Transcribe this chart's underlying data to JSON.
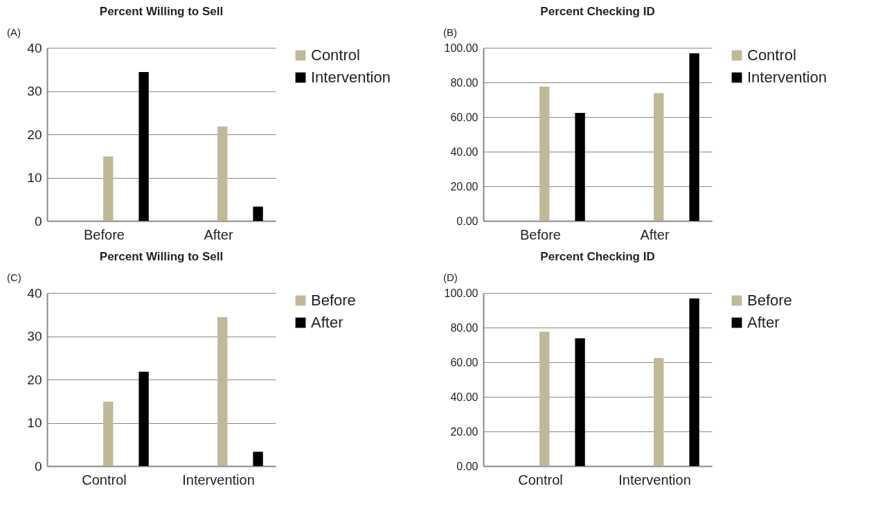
{
  "chart_data": [
    {
      "type": "bar",
      "title": "Percent Willing to Sell",
      "annotations": [
        "(A)"
      ],
      "categories": [
        "Before",
        "After"
      ],
      "series": [
        {
          "name": "Control",
          "color": "#bfb997",
          "values": [
            14.9,
            21.8
          ]
        },
        {
          "name": "Intervention",
          "color": "#000000",
          "values": [
            34.4,
            3.3
          ]
        }
      ],
      "ylim": [
        0,
        40
      ],
      "yticks": [
        0,
        10,
        20,
        30,
        40
      ],
      "grid": "y",
      "legend": "right"
    },
    {
      "type": "bar",
      "title": "Percent Checking ID",
      "annotations": [
        "(B)"
      ],
      "categories": [
        "Before",
        "After"
      ],
      "series": [
        {
          "name": "Control",
          "color": "#bfb997",
          "values": [
            77.6,
            73.8
          ]
        },
        {
          "name": "Intervention",
          "color": "#000000",
          "values": [
            62.4,
            96.8
          ]
        }
      ],
      "ylim": [
        0,
        100
      ],
      "yticks": [
        {
          "value": 0,
          "label": "0.00"
        },
        {
          "value": 20,
          "label": "20.00"
        },
        {
          "value": 40,
          "label": "40.00"
        },
        {
          "value": 60,
          "label": "60.00"
        },
        {
          "value": 80,
          "label": "80.00"
        },
        {
          "value": 100,
          "label": "100.00"
        }
      ],
      "grid": "y",
      "legend": "right"
    },
    {
      "type": "bar",
      "title": "Percent Willing to Sell",
      "annotations": [
        "(C)"
      ],
      "categories": [
        "Control",
        "Intervention"
      ],
      "series": [
        {
          "name": "Before",
          "color": "#bfb997",
          "values": [
            14.9,
            34.4
          ]
        },
        {
          "name": "After",
          "color": "#000000",
          "values": [
            21.8,
            3.3
          ]
        }
      ],
      "ylim": [
        0,
        40
      ],
      "yticks": [
        0,
        10,
        20,
        30,
        40
      ],
      "grid": "y",
      "legend": "right"
    },
    {
      "type": "bar",
      "title": "Percent Checking ID",
      "annotations": [
        "(D)"
      ],
      "categories": [
        "Control",
        "Intervention"
      ],
      "series": [
        {
          "name": "Before",
          "color": "#bfb997",
          "values": [
            77.6,
            62.4
          ]
        },
        {
          "name": "After",
          "color": "#000000",
          "values": [
            73.8,
            96.8
          ]
        }
      ],
      "ylim": [
        0,
        100
      ],
      "yticks": [
        {
          "value": 0,
          "label": "0.00"
        },
        {
          "value": 20,
          "label": "20.00"
        },
        {
          "value": 40,
          "label": "40.00"
        },
        {
          "value": 60,
          "label": "60.00"
        },
        {
          "value": 80,
          "label": "80.00"
        },
        {
          "value": 100,
          "label": "100.00"
        }
      ],
      "grid": "y",
      "legend": "right"
    }
  ]
}
